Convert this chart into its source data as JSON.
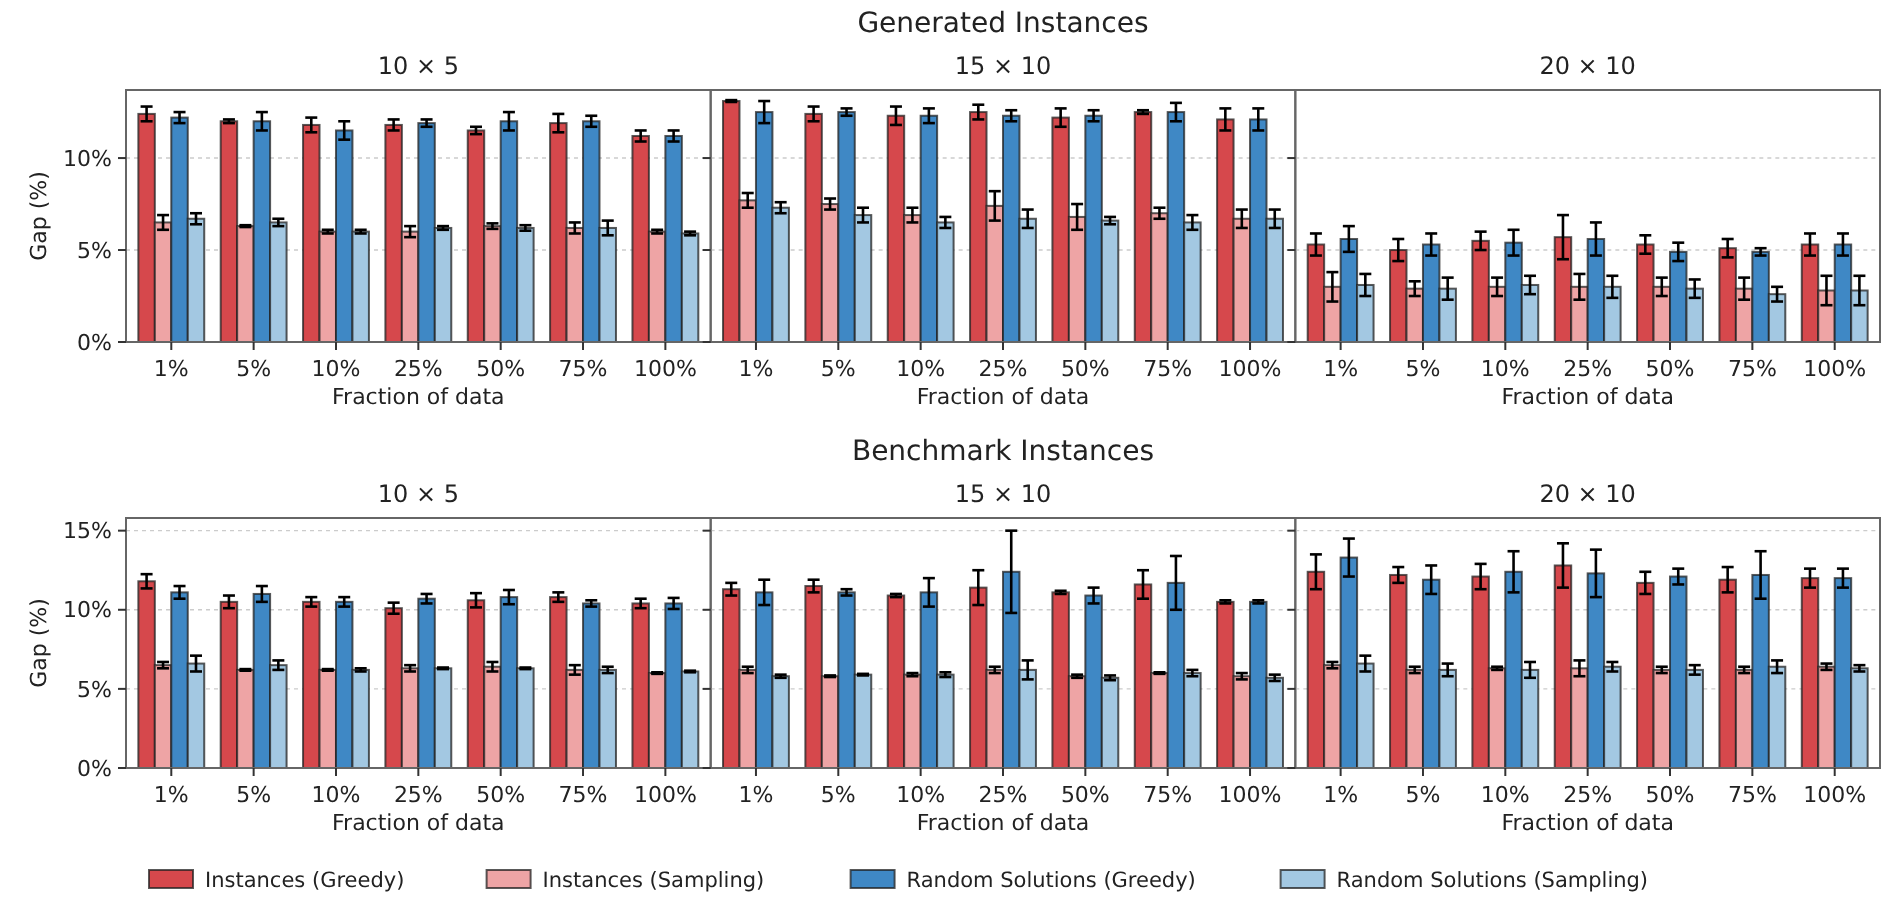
{
  "chart_data": [
    {
      "type": "bar",
      "title": "10 × 5",
      "annotations": [
        "Generated Instances"
      ],
      "xlabel": "Fraction of data",
      "ylabel": "Gap (%)",
      "categories": [
        "1%",
        "5%",
        "10%",
        "25%",
        "50%",
        "75%",
        "100%"
      ],
      "ylim": [
        0,
        13.7
      ],
      "yticks": [
        {
          "value": 0,
          "label": "0%"
        },
        {
          "value": 5,
          "label": "5%"
        },
        {
          "value": 10,
          "label": "10%"
        }
      ],
      "grid": "y",
      "legend": "bottom",
      "series": [
        {
          "name": "Instances (Greedy)",
          "color": "#d6484c",
          "values": [
            12.4,
            12.0,
            11.8,
            11.8,
            11.5,
            11.9,
            11.2
          ],
          "errors": [
            0.4,
            0.1,
            0.4,
            0.3,
            0.2,
            0.5,
            0.3
          ]
        },
        {
          "name": "Instances (Sampling)",
          "color": "#eea4a5",
          "values": [
            6.5,
            6.3,
            6.0,
            6.0,
            6.3,
            6.2,
            6.0
          ],
          "errors": [
            0.4,
            0.05,
            0.1,
            0.3,
            0.15,
            0.3,
            0.1
          ]
        },
        {
          "name": "Random Solutions (Greedy)",
          "color": "#3f88c5",
          "values": [
            12.2,
            12.0,
            11.5,
            11.9,
            12.0,
            12.0,
            11.2
          ],
          "errors": [
            0.3,
            0.5,
            0.5,
            0.2,
            0.5,
            0.3,
            0.3
          ]
        },
        {
          "name": "Random Solutions (Sampling)",
          "color": "#a3c8e2",
          "values": [
            6.7,
            6.5,
            6.0,
            6.2,
            6.2,
            6.2,
            5.9
          ],
          "errors": [
            0.3,
            0.2,
            0.1,
            0.1,
            0.15,
            0.4,
            0.1
          ]
        }
      ]
    },
    {
      "type": "bar",
      "title": "15 × 10",
      "xlabel": "Fraction of data",
      "categories": [
        "1%",
        "5%",
        "10%",
        "25%",
        "50%",
        "75%",
        "100%"
      ],
      "ylim": [
        0,
        13.7
      ],
      "yticks": [
        0,
        5,
        10
      ],
      "grid": "y",
      "tick_labels": "x",
      "series": [
        {
          "color": "#d6484c",
          "values": [
            13.1,
            12.4,
            12.3,
            12.5,
            12.2,
            12.5,
            12.1
          ],
          "errors": [
            0.05,
            0.4,
            0.5,
            0.4,
            0.5,
            0.1,
            0.6
          ]
        },
        {
          "color": "#eea4a5",
          "values": [
            7.7,
            7.5,
            6.9,
            7.4,
            6.8,
            7.0,
            6.7
          ],
          "errors": [
            0.4,
            0.3,
            0.4,
            0.8,
            0.7,
            0.3,
            0.5
          ]
        },
        {
          "color": "#3f88c5",
          "values": [
            12.5,
            12.5,
            12.3,
            12.3,
            12.3,
            12.5,
            12.1
          ],
          "errors": [
            0.6,
            0.2,
            0.4,
            0.3,
            0.3,
            0.5,
            0.6
          ]
        },
        {
          "color": "#a3c8e2",
          "values": [
            7.3,
            6.9,
            6.5,
            6.7,
            6.6,
            6.5,
            6.7
          ],
          "errors": [
            0.3,
            0.4,
            0.3,
            0.5,
            0.2,
            0.4,
            0.5
          ]
        }
      ]
    },
    {
      "type": "bar",
      "title": "20 × 10",
      "xlabel": "Fraction of data",
      "categories": [
        "1%",
        "5%",
        "10%",
        "25%",
        "50%",
        "75%",
        "100%"
      ],
      "ylim": [
        0,
        13.7
      ],
      "yticks": [
        0,
        5,
        10
      ],
      "grid": "y",
      "tick_labels": "x",
      "series": [
        {
          "color": "#d6484c",
          "values": [
            5.3,
            5.0,
            5.5,
            5.7,
            5.3,
            5.1,
            5.3
          ],
          "errors": [
            0.6,
            0.6,
            0.5,
            1.2,
            0.5,
            0.5,
            0.6
          ]
        },
        {
          "color": "#eea4a5",
          "values": [
            3.0,
            2.9,
            3.0,
            3.0,
            3.0,
            2.9,
            2.8
          ],
          "errors": [
            0.8,
            0.4,
            0.5,
            0.7,
            0.5,
            0.6,
            0.8
          ]
        },
        {
          "color": "#3f88c5",
          "values": [
            5.6,
            5.3,
            5.4,
            5.6,
            4.9,
            4.9,
            5.3
          ],
          "errors": [
            0.7,
            0.6,
            0.7,
            0.9,
            0.5,
            0.2,
            0.6
          ]
        },
        {
          "color": "#a3c8e2",
          "values": [
            3.1,
            2.9,
            3.1,
            3.0,
            2.9,
            2.6,
            2.8
          ],
          "errors": [
            0.6,
            0.6,
            0.5,
            0.6,
            0.5,
            0.4,
            0.8
          ]
        }
      ]
    },
    {
      "type": "bar",
      "title": "10 × 5",
      "annotations": [
        "Benchmark Instances"
      ],
      "xlabel": "Fraction of data",
      "ylabel": "Gap (%)",
      "categories": [
        "1%",
        "5%",
        "10%",
        "25%",
        "50%",
        "75%",
        "100%"
      ],
      "ylim": [
        0,
        15.8
      ],
      "yticks": [
        {
          "value": 0,
          "label": "0%"
        },
        {
          "value": 5,
          "label": "5%"
        },
        {
          "value": 10,
          "label": "10%"
        },
        {
          "value": 15,
          "label": "15%"
        }
      ],
      "grid": "y",
      "series": [
        {
          "color": "#d6484c",
          "values": [
            11.8,
            10.5,
            10.5,
            10.1,
            10.6,
            10.8,
            10.4
          ],
          "errors": [
            0.45,
            0.4,
            0.3,
            0.35,
            0.45,
            0.3,
            0.3
          ]
        },
        {
          "color": "#eea4a5",
          "values": [
            6.5,
            6.2,
            6.2,
            6.3,
            6.4,
            6.2,
            6.0
          ],
          "errors": [
            0.2,
            0.05,
            0.05,
            0.2,
            0.3,
            0.3,
            0.05
          ]
        },
        {
          "color": "#3f88c5",
          "values": [
            11.1,
            11.0,
            10.5,
            10.7,
            10.8,
            10.4,
            10.4
          ],
          "errors": [
            0.4,
            0.5,
            0.3,
            0.3,
            0.45,
            0.2,
            0.35
          ]
        },
        {
          "color": "#a3c8e2",
          "values": [
            6.6,
            6.5,
            6.2,
            6.3,
            6.3,
            6.2,
            6.1
          ],
          "errors": [
            0.5,
            0.3,
            0.1,
            0.05,
            0.05,
            0.2,
            0.05
          ]
        }
      ]
    },
    {
      "type": "bar",
      "title": "15 × 10",
      "xlabel": "Fraction of data",
      "categories": [
        "1%",
        "5%",
        "10%",
        "25%",
        "50%",
        "75%",
        "100%"
      ],
      "ylim": [
        0,
        15.8
      ],
      "yticks": [
        0,
        5,
        10,
        15
      ],
      "grid": "y",
      "tick_labels": "x",
      "series": [
        {
          "color": "#d6484c",
          "values": [
            11.3,
            11.5,
            10.9,
            11.4,
            11.1,
            11.6,
            10.5
          ],
          "errors": [
            0.4,
            0.4,
            0.1,
            1.1,
            0.1,
            0.9,
            0.1
          ]
        },
        {
          "color": "#eea4a5",
          "values": [
            6.2,
            5.8,
            5.9,
            6.2,
            5.8,
            6.0,
            5.8
          ],
          "errors": [
            0.2,
            0.05,
            0.1,
            0.2,
            0.1,
            0.05,
            0.2
          ]
        },
        {
          "color": "#3f88c5",
          "values": [
            11.1,
            11.1,
            11.1,
            12.4,
            10.9,
            11.7,
            10.5
          ],
          "errors": [
            0.8,
            0.2,
            0.9,
            2.6,
            0.5,
            1.7,
            0.1
          ]
        },
        {
          "color": "#a3c8e2",
          "values": [
            5.8,
            5.9,
            5.9,
            6.2,
            5.7,
            6.0,
            5.7
          ],
          "errors": [
            0.1,
            0.05,
            0.15,
            0.6,
            0.15,
            0.2,
            0.2
          ]
        }
      ]
    },
    {
      "type": "bar",
      "title": "20 × 10",
      "xlabel": "Fraction of data",
      "categories": [
        "1%",
        "5%",
        "10%",
        "25%",
        "50%",
        "75%",
        "100%"
      ],
      "ylim": [
        0,
        15.8
      ],
      "yticks": [
        0,
        5,
        10,
        15
      ],
      "grid": "y",
      "tick_labels": "x",
      "series": [
        {
          "color": "#d6484c",
          "values": [
            12.4,
            12.2,
            12.1,
            12.8,
            11.7,
            11.9,
            12.0
          ],
          "errors": [
            1.1,
            0.5,
            0.8,
            1.4,
            0.7,
            0.8,
            0.6
          ]
        },
        {
          "color": "#eea4a5",
          "values": [
            6.5,
            6.2,
            6.3,
            6.3,
            6.2,
            6.2,
            6.4
          ],
          "errors": [
            0.2,
            0.2,
            0.1,
            0.5,
            0.2,
            0.2,
            0.2
          ]
        },
        {
          "color": "#3f88c5",
          "values": [
            13.3,
            11.9,
            12.4,
            12.3,
            12.1,
            12.2,
            12.0
          ],
          "errors": [
            1.2,
            0.9,
            1.3,
            1.5,
            0.5,
            1.5,
            0.6
          ]
        },
        {
          "color": "#a3c8e2",
          "values": [
            6.6,
            6.2,
            6.2,
            6.4,
            6.2,
            6.4,
            6.3
          ],
          "errors": [
            0.5,
            0.4,
            0.5,
            0.3,
            0.3,
            0.4,
            0.2
          ]
        }
      ]
    }
  ]
}
